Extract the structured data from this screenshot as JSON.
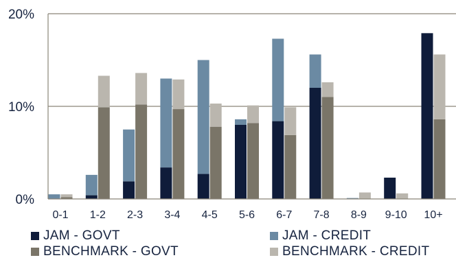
{
  "chart_data": {
    "type": "bar",
    "categories": [
      "0-1",
      "1-2",
      "2-3",
      "3-4",
      "4-5",
      "5-6",
      "6-7",
      "7-8",
      "8-9",
      "9-10",
      "10+"
    ],
    "y_ticks": [
      "0%",
      "10%",
      "20%"
    ],
    "ylim": [
      0,
      20
    ],
    "grid": true,
    "stacked_pairs": true,
    "legend_position": "bottom",
    "series": [
      {
        "name": "JAM - GOVT",
        "color": "#0f1c3a",
        "values": [
          0,
          0.4,
          1.9,
          3.4,
          2.7,
          8.0,
          8.4,
          12.0,
          0,
          2.3,
          17.9
        ]
      },
      {
        "name": "JAM - CREDIT",
        "color": "#6b8aa3",
        "values": [
          0.5,
          2.2,
          5.6,
          9.6,
          12.3,
          0.6,
          8.9,
          3.6,
          0.1,
          0,
          0
        ]
      },
      {
        "name": "BENCHMARK - GOVT",
        "color": "#7a7568",
        "values": [
          0.2,
          9.9,
          10.2,
          9.7,
          7.8,
          8.2,
          6.9,
          11.0,
          0,
          0,
          8.6
        ]
      },
      {
        "name": "BENCHMARK - CREDIT",
        "color": "#bab6ae",
        "values": [
          0.3,
          3.4,
          3.4,
          3.2,
          2.5,
          1.9,
          3.0,
          1.6,
          0.7,
          0.6,
          7.0
        ]
      }
    ]
  }
}
